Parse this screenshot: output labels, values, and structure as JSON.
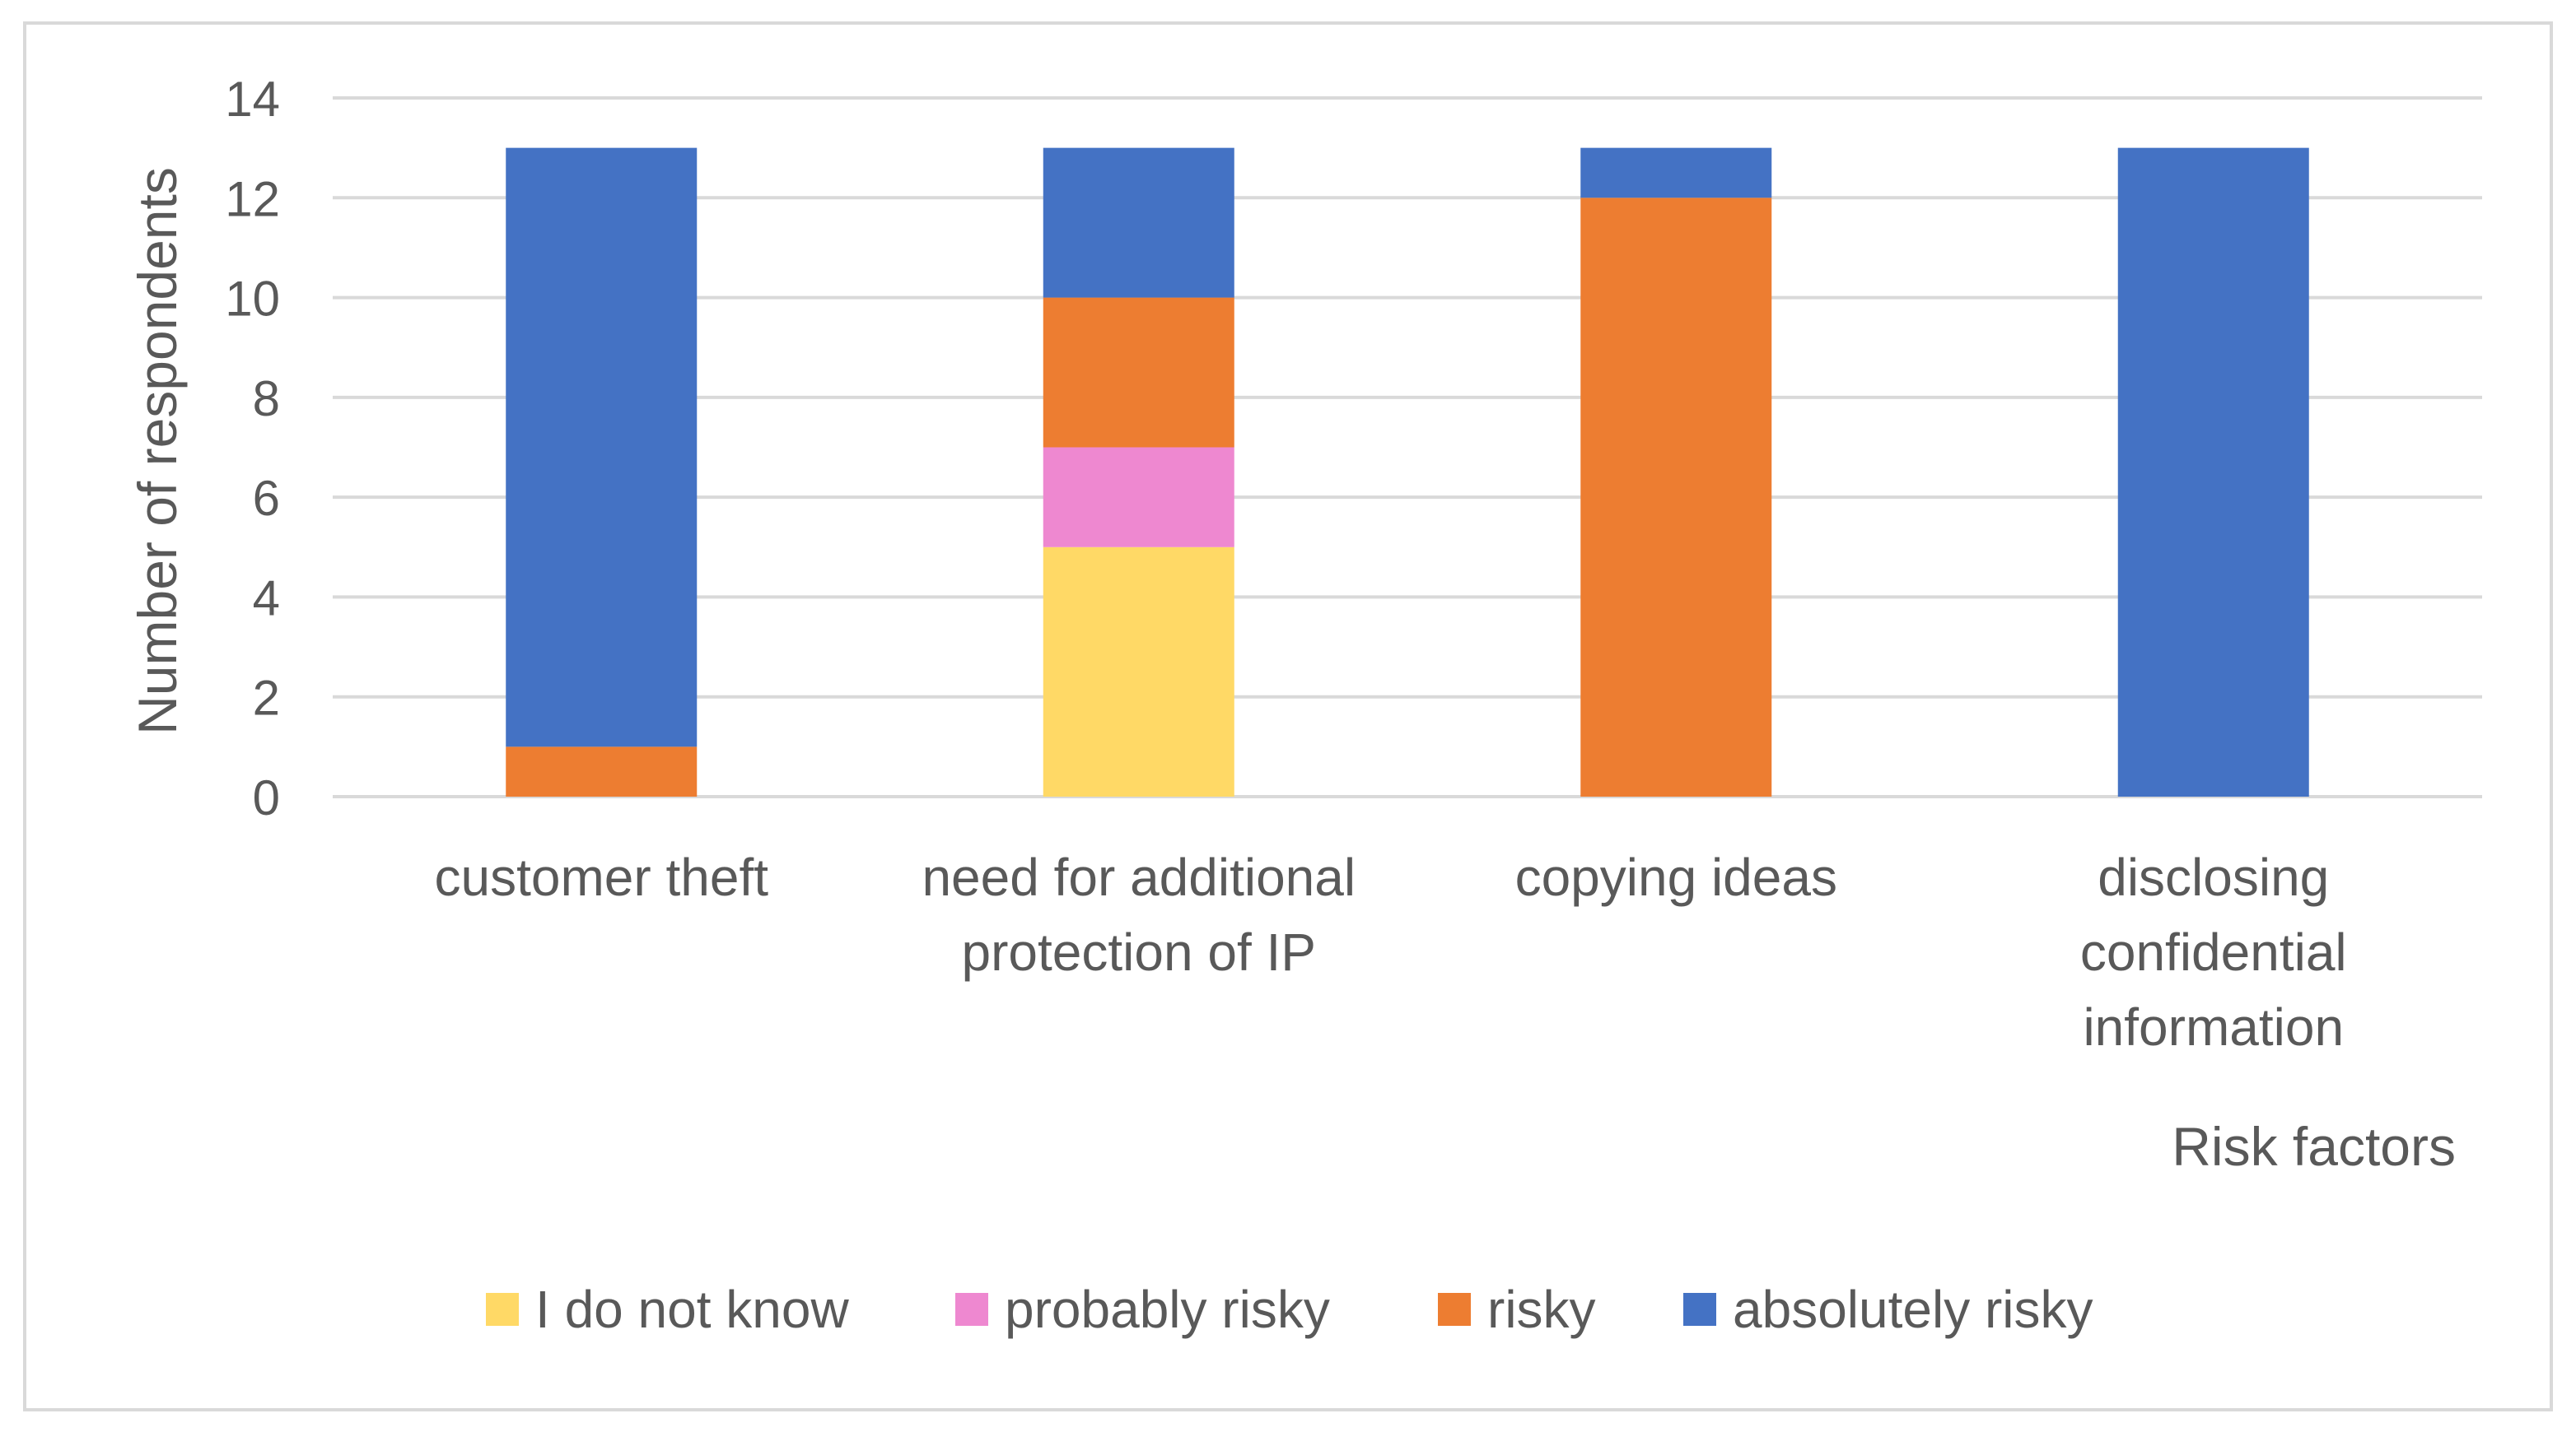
{
  "chart_data": {
    "type": "bar",
    "stacked": true,
    "title": "",
    "xlabel": "Risk factors",
    "ylabel": "Number of respondents",
    "ylim": [
      0,
      14
    ],
    "yticks": [
      0,
      2,
      4,
      6,
      8,
      10,
      12,
      14
    ],
    "grid": true,
    "legend_position": "bottom",
    "categories": [
      [
        "customer theft"
      ],
      [
        "need for additional",
        "protection of IP"
      ],
      [
        "copying ideas"
      ],
      [
        "disclosing",
        "confidential",
        "information"
      ]
    ],
    "series": [
      {
        "name": "I do not know",
        "color": "#FFD966",
        "values": [
          0,
          5,
          0,
          0
        ]
      },
      {
        "name": "probably risky",
        "color": "#EE88D0",
        "values": [
          0,
          2,
          0,
          0
        ]
      },
      {
        "name": "risky",
        "color": "#ED7D31",
        "values": [
          1,
          3,
          12,
          0
        ]
      },
      {
        "name": "absolutely risky",
        "color": "#4472C4",
        "values": [
          12,
          3,
          1,
          13
        ]
      }
    ]
  }
}
